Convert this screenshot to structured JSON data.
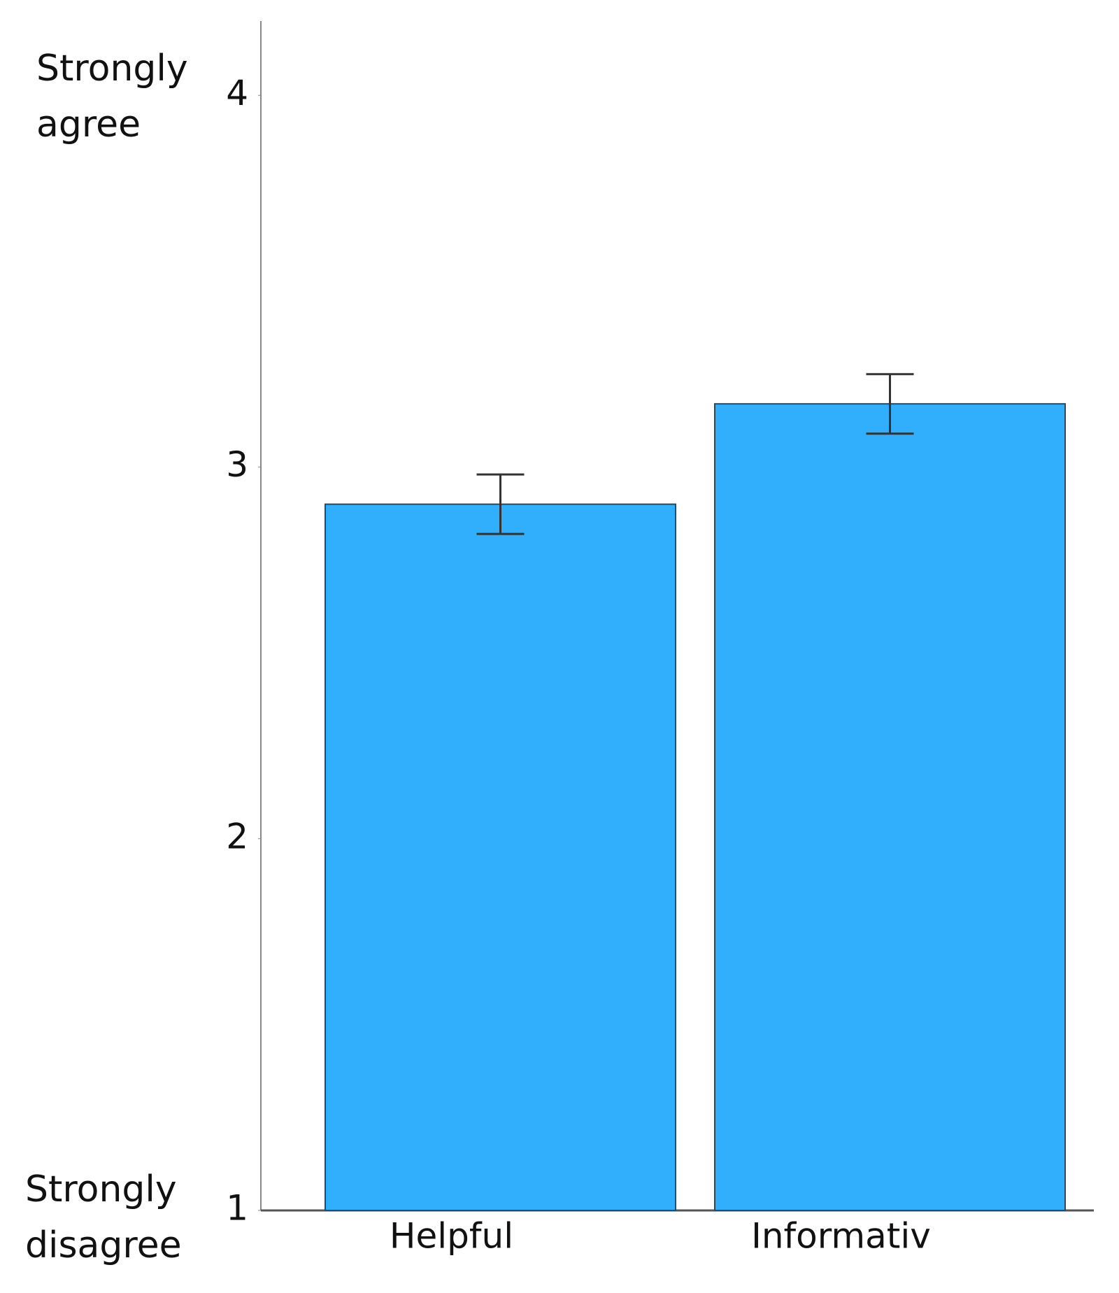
{
  "chart_data": {
    "type": "bar",
    "categories": [
      "Helpful",
      "Informativ"
    ],
    "values": [
      2.9,
      3.17
    ],
    "errors": [
      0.08,
      0.08
    ],
    "color": "#31aefc",
    "ylim": [
      1,
      4.2
    ],
    "yticks": [
      1,
      2,
      3,
      4
    ],
    "grid": false,
    "annotations": [
      "Strongly agree",
      "Strongly disagree"
    ]
  }
}
